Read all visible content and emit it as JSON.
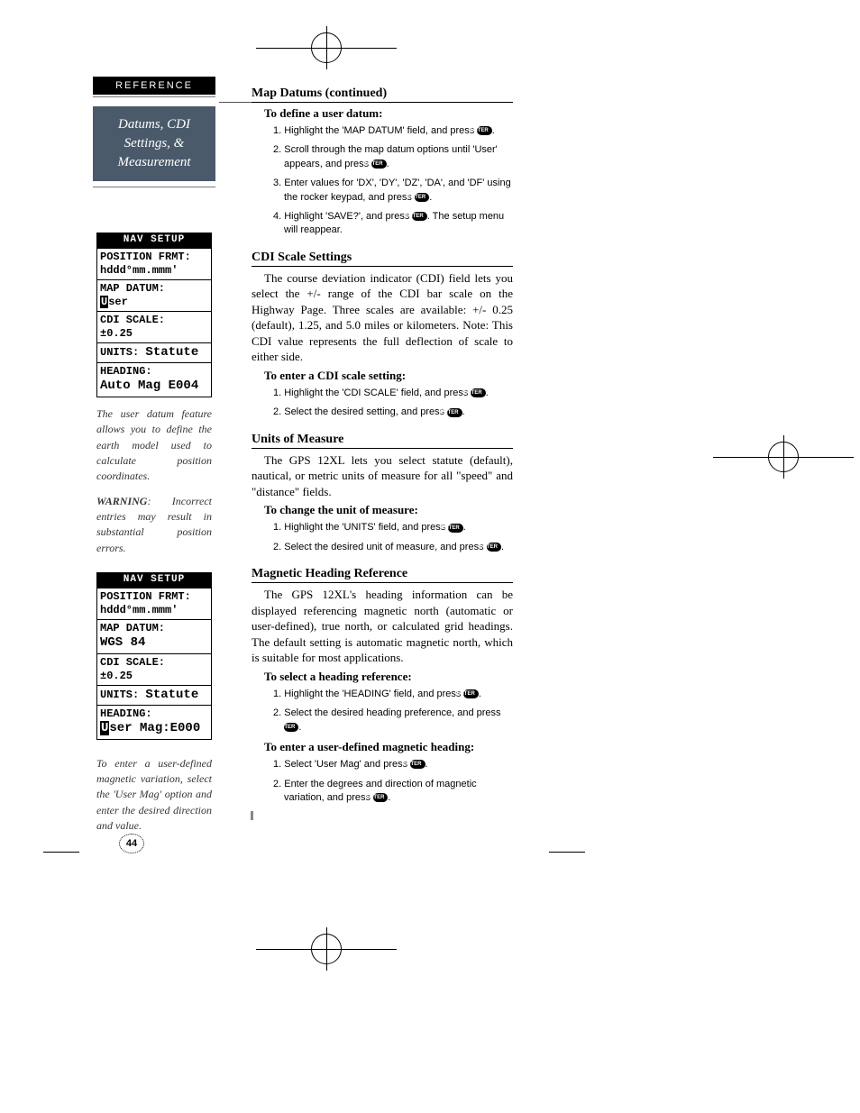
{
  "ref_badge": "REFERENCE",
  "title_box": "Datums, CDI Settings, & Measurement",
  "lcd1": {
    "title": "NAV SETUP",
    "rows": [
      {
        "l1": "POSITION FRMT:",
        "l2": "hddd°mm.mmm'"
      },
      {
        "l1": "MAP DATUM:",
        "l2": "User",
        "highlight_first_char": true
      },
      {
        "l1": "CDI SCALE:",
        "l2": "±0.25"
      },
      {
        "l1": "UNITS:",
        "l2": "Statute",
        "inline": true
      },
      {
        "l1": "HEADING:",
        "l2": "Auto Mag E004"
      }
    ]
  },
  "caption1": "The user datum feature allows you to define the earth model used to calculate position coordinates.",
  "caption2_warn": "WARNING",
  "caption2": ": Incorrect entries may result in substantial position errors.",
  "lcd2": {
    "title": "NAV SETUP",
    "rows": [
      {
        "l1": "POSITION FRMT:",
        "l2": "hddd°mm.mmm'"
      },
      {
        "l1": "MAP DATUM:",
        "l2": "WGS 84"
      },
      {
        "l1": "CDI SCALE:",
        "l2": "±0.25"
      },
      {
        "l1": "UNITS:",
        "l2": "Statute",
        "inline": true
      },
      {
        "l1": "HEADING:",
        "l2": "User Mag:E000",
        "highlight_first_char": true
      }
    ]
  },
  "caption3": "To enter a user-defined magnetic variation, select the 'User Mag' option and enter the desired direction and value.",
  "page_number": "44",
  "sections": {
    "s1_title": "Map Datums (continued)",
    "s1_sub": "To define a user datum:",
    "s1_steps": [
      "1. Highlight the 'MAP DATUM' field, and press {ENTER}.",
      "2. Scroll through the map datum options until 'User' appears, and press {ENTER}.",
      "3. Enter values for 'DX', 'DY', 'DZ', 'DA', and 'DF' using the rocker keypad, and press {ENTER}.",
      "4. Highlight 'SAVE?', and press {ENTER}. The setup menu will reappear."
    ],
    "s2_title": "CDI Scale Settings",
    "s2_body": "The course deviation indicator (CDI) field lets you select the +/- range of the CDI bar scale on the Highway Page. Three scales are available: +/- 0.25 (default), 1.25, and 5.0 miles or kilometers. Note: This CDI value represents the full deflection of scale to either side.",
    "s2_sub": "To enter a CDI scale setting:",
    "s2_steps": [
      "1. Highlight the 'CDI SCALE' field, and press {ENTER}.",
      "2. Select the desired setting, and press {ENTER}."
    ],
    "s3_title": "Units of Measure",
    "s3_body": "The GPS 12XL lets you select statute (default), nautical, or metric units of measure for all \"speed\" and \"distance\" fields.",
    "s3_sub": "To change the unit of measure:",
    "s3_steps": [
      "1. Highlight the 'UNITS' field, and press {ENTER}.",
      "2. Select the desired unit of measure, and press {ENTER}."
    ],
    "s4_title": "Magnetic Heading Reference",
    "s4_body": "The GPS 12XL's heading information can be displayed referencing magnetic north (automatic or user-defined), true north, or calculated grid headings. The default setting is automatic magnetic north, which is suitable for most applications.",
    "s4_sub1": "To select a heading reference:",
    "s4_steps1": [
      "1. Highlight the 'HEADING' field, and press {ENTER}.",
      "2. Select the desired heading preference, and press {ENTER}."
    ],
    "s4_sub2": "To enter a user-defined magnetic heading:",
    "s4_steps2": [
      "1. Select 'User Mag' and press {ENTER}.",
      "2. Enter the degrees and direction of magnetic variation, and press {ENTER}."
    ]
  },
  "enter_label": "ENTER"
}
